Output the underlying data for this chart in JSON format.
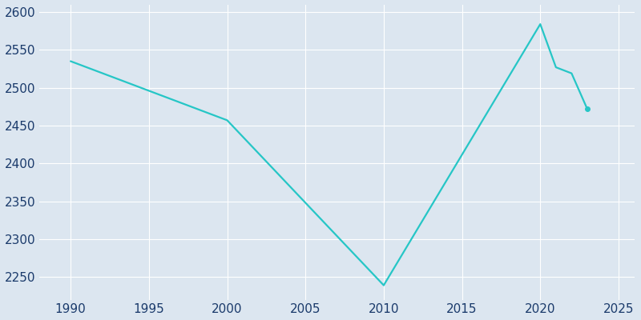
{
  "years": [
    1990,
    2000,
    2005,
    2010,
    2020,
    2021,
    2022,
    2023
  ],
  "population": [
    2535,
    2457,
    2348,
    2239,
    2584,
    2527,
    2519,
    2472
  ],
  "line_color": "#26C6C6",
  "marker_color": "#26C6C6",
  "background_color": "#dce6f0",
  "grid_color": "#ffffff",
  "text_color": "#1a3a6b",
  "xlim": [
    1988,
    2026
  ],
  "ylim": [
    2220,
    2610
  ],
  "xticks": [
    1990,
    1995,
    2000,
    2005,
    2010,
    2015,
    2020,
    2025
  ],
  "yticks": [
    2250,
    2300,
    2350,
    2400,
    2450,
    2500,
    2550,
    2600
  ],
  "linewidth": 1.6,
  "marker_size": 4,
  "figsize": [
    8.0,
    4.0
  ],
  "dpi": 100
}
